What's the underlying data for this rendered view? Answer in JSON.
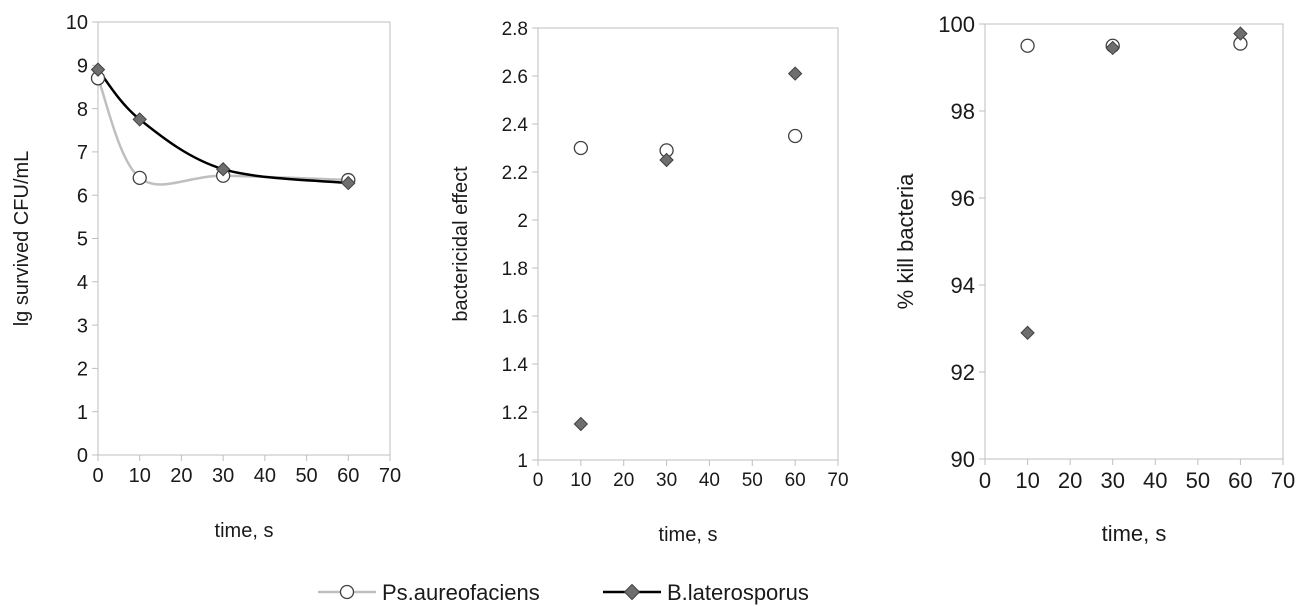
{
  "legend": {
    "placement": "bottom",
    "items": [
      {
        "label": "Ps.aureofaciens",
        "line_color": "#bfbfbf",
        "marker": "circle-open"
      },
      {
        "label": "B.laterosporus",
        "line_color": "#000000",
        "marker": "diamond-filled"
      }
    ]
  },
  "colors": {
    "marker_fill_dark": "#6e6e6e",
    "marker_stroke": "#404040",
    "axis": "#bfbfbf",
    "line_ps": "#bfbfbf",
    "line_bl": "#000000"
  },
  "chart_data": [
    {
      "type": "line",
      "title": "",
      "xlabel": "time, s",
      "ylabel": "lg survived CFU/mL",
      "xlim": [
        0,
        70
      ],
      "ylim": [
        0,
        10
      ],
      "xticks": [
        "0",
        "10",
        "20",
        "30",
        "40",
        "50",
        "60",
        "70"
      ],
      "yticks": [
        "0",
        "1",
        "2",
        "3",
        "4",
        "5",
        "6",
        "7",
        "8",
        "9",
        "10"
      ],
      "grid": false,
      "smooth_lines": true,
      "series": [
        {
          "name": "Ps.aureofaciens",
          "x": [
            0,
            10,
            30,
            60
          ],
          "y": [
            8.7,
            6.4,
            6.45,
            6.35
          ]
        },
        {
          "name": "B.laterosporus",
          "x": [
            0,
            10,
            30,
            60
          ],
          "y": [
            8.9,
            7.75,
            6.6,
            6.28
          ]
        }
      ]
    },
    {
      "type": "scatter",
      "title": "",
      "xlabel": "time, s",
      "ylabel": "bactericidal effect",
      "xlim": [
        0,
        70
      ],
      "ylim": [
        1,
        2.8
      ],
      "xticks": [
        "0",
        "10",
        "20",
        "30",
        "40",
        "50",
        "60",
        "70"
      ],
      "yticks": [
        "1",
        "1.2",
        "1.4",
        "1.6",
        "1.8",
        "2",
        "2.2",
        "2.4",
        "2.6",
        "2.8"
      ],
      "grid": false,
      "series": [
        {
          "name": "Ps.aureofaciens",
          "x": [
            10,
            30,
            60
          ],
          "y": [
            2.3,
            2.29,
            2.35
          ]
        },
        {
          "name": "B.laterosporus",
          "x": [
            10,
            30,
            60
          ],
          "y": [
            1.15,
            2.25,
            2.61
          ]
        }
      ]
    },
    {
      "type": "scatter",
      "title": "",
      "xlabel": "time, s",
      "ylabel": "% kill bacteria",
      "xlim": [
        0,
        70
      ],
      "ylim": [
        90,
        100
      ],
      "xticks": [
        "0",
        "10",
        "20",
        "30",
        "40",
        "50",
        "60",
        "70"
      ],
      "yticks": [
        "90",
        "92",
        "94",
        "96",
        "98",
        "100"
      ],
      "grid": false,
      "series": [
        {
          "name": "Ps.aureofaciens",
          "x": [
            10,
            30,
            60
          ],
          "y": [
            99.5,
            99.5,
            99.55
          ]
        },
        {
          "name": "B.laterosporus",
          "x": [
            10,
            30,
            60
          ],
          "y": [
            92.9,
            99.45,
            99.78
          ]
        }
      ]
    }
  ]
}
